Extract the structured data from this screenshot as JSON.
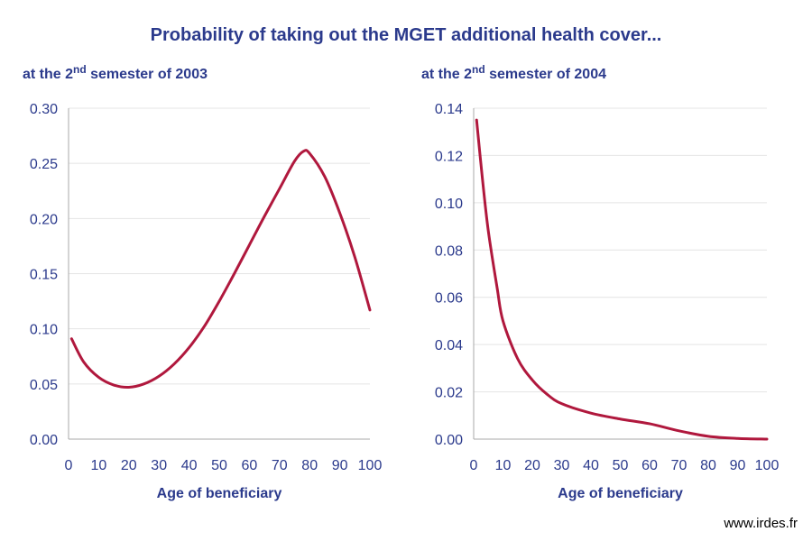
{
  "title": "Probability of taking out the MGET additional health cover...",
  "footer": "www.irdes.fr",
  "colors": {
    "text": "#2b3a8c",
    "line": "#b0183d",
    "grid": "#e4e4e4"
  },
  "chart_data": [
    {
      "type": "line",
      "subtitle": {
        "prefix": "at the 2",
        "sup": "nd",
        "suffix": " semester of 2003"
      },
      "xlabel": "Age of beneficiary",
      "ylabel": "",
      "xlim": [
        0,
        100
      ],
      "ylim": [
        0,
        0.3
      ],
      "xticks": [
        "0",
        "10",
        "20",
        "30",
        "40",
        "50",
        "60",
        "70",
        "80",
        "90",
        "100"
      ],
      "yticks": [
        "0.00",
        "0.05",
        "0.10",
        "0.15",
        "0.20",
        "0.25",
        "0.30"
      ],
      "grid": true,
      "series": [
        {
          "x": [
            1,
            5,
            10,
            15,
            20,
            25,
            30,
            35,
            40,
            45,
            50,
            55,
            60,
            65,
            70,
            75,
            78,
            80,
            85,
            90,
            95,
            100
          ],
          "y": [
            0.091,
            0.07,
            0.056,
            0.049,
            0.047,
            0.05,
            0.057,
            0.068,
            0.083,
            0.102,
            0.125,
            0.15,
            0.176,
            0.202,
            0.227,
            0.252,
            0.261,
            0.259,
            0.238,
            0.205,
            0.165,
            0.117
          ]
        }
      ]
    },
    {
      "type": "line",
      "subtitle": {
        "prefix": "at the 2",
        "sup": "nd",
        "suffix": " semester of 2004"
      },
      "xlabel": "Age of beneficiary",
      "ylabel": "",
      "xlim": [
        0,
        100
      ],
      "ylim": [
        0,
        0.14
      ],
      "xticks": [
        "0",
        "10",
        "20",
        "30",
        "40",
        "50",
        "60",
        "70",
        "80",
        "90",
        "100"
      ],
      "yticks": [
        "0.00",
        "0.02",
        "0.04",
        "0.06",
        "0.08",
        "0.10",
        "0.12",
        "0.14"
      ],
      "grid": true,
      "series": [
        {
          "x": [
            1,
            3,
            5,
            8,
            10,
            15,
            20,
            25,
            30,
            40,
            50,
            60,
            70,
            80,
            90,
            100
          ],
          "y": [
            0.135,
            0.11,
            0.088,
            0.064,
            0.05,
            0.034,
            0.025,
            0.019,
            0.015,
            0.011,
            0.0085,
            0.0065,
            0.0035,
            0.0012,
            0.0003,
            0.0
          ]
        }
      ]
    }
  ]
}
